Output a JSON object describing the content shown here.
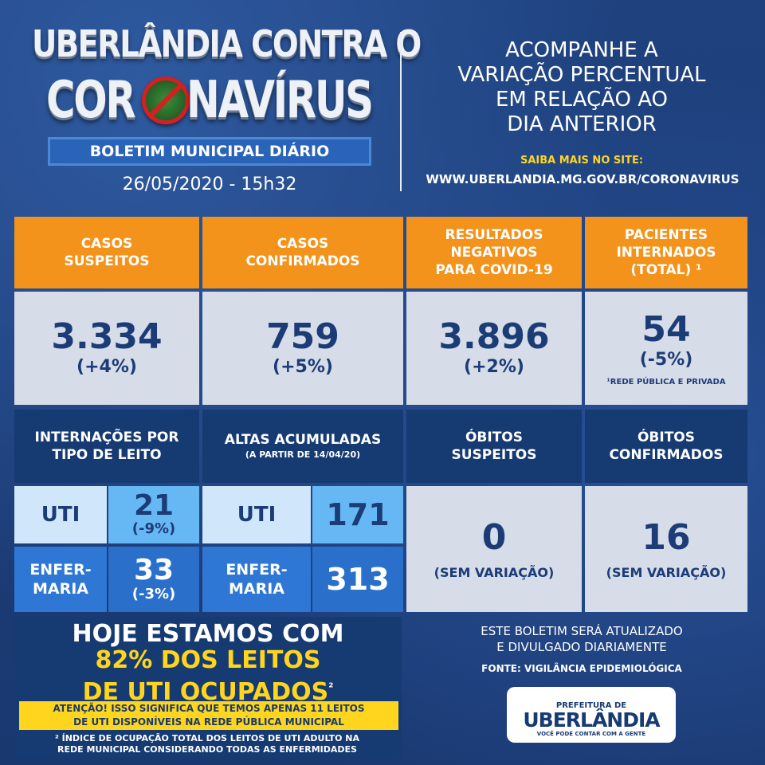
{
  "header": {
    "title_line1": "UBERLÂNDIA CONTRA O",
    "title_line2_a": "COR",
    "title_line2_b": "NAVÍRUS",
    "badge": "BOLETIM MUNICIPAL DIÁRIO",
    "date": "26/05/2020 - 15h32",
    "acompanhe_lines": [
      "ACOMPANHE A",
      "VARIAÇÃO PERCENTUAL",
      "EM RELAÇÃO AO",
      "DIA ANTERIOR"
    ],
    "saiba": "SAIBA MAIS NO SITE:",
    "site": "WWW.UBERLANDIA.MG.GOV.BR/CORONAVIRUS"
  },
  "row1": [
    {
      "label": "CASOS\nSUSPEITOS",
      "value": "3.334",
      "pct": "(+4%)"
    },
    {
      "label": "CASOS\nCONFIRMADOS",
      "value": "759",
      "pct": "(+5%)"
    },
    {
      "label": "RESULTADOS\nNEGATIVOS\nPARA COVID-19",
      "value": "3.896",
      "pct": "(+2%)"
    },
    {
      "label": "PACIENTES\nINTERNADOS\n(TOTAL) ¹",
      "value": "54",
      "pct": "(-5%)",
      "note": "¹REDE PÚBLICA E PRIVADA"
    }
  ],
  "internacoes": {
    "title": "INTERNAÇÕES POR\nTIPO DE LEITO",
    "uti_label": "UTI",
    "uti_value": "21",
    "uti_pct": "(-9%)",
    "enf_label": "ENFER-\nMARIA",
    "enf_value": "33",
    "enf_pct": "(-3%)"
  },
  "altas": {
    "title": "ALTAS ACUMULADAS",
    "subtitle": "(A PARTIR DE 14/04/20)",
    "uti_label": "UTI",
    "uti_value": "171",
    "enf_label": "ENFER-\nMARIA",
    "enf_value": "313"
  },
  "obitos_suspeitos": {
    "title": "ÓBITOS\nSUSPEITOS",
    "value": "0",
    "note": "(SEM VARIAÇÃO)"
  },
  "obitos_confirmados": {
    "title": "ÓBITOS\nCONFIRMADOS",
    "value": "16",
    "note": "(SEM VARIAÇÃO)"
  },
  "hoje": {
    "line1": "HOJE ESTAMOS COM",
    "line2": "82% DOS LEITOS",
    "line3": "DE UTI OCUPADOS",
    "sup": "²",
    "atencao": "ATENÇÃO! ISSO SIGNIFICA QUE TEMOS APENAS 11 LEITOS\nDE UTI DISPONÍVEIS NA REDE PÚBLICA MUNICIPAL",
    "nota": "² ÍNDICE DE OCUPAÇÃO TOTAL DOS LEITOS DE UTI ADULTO NA\nREDE MUNICIPAL CONSIDERANDO TODAS AS ENFERMIDADES"
  },
  "footer": {
    "este": "ESTE BOLETIM SERÁ ATUALIZADO\nE DIVULGADO DIARIAMENTE",
    "fonte": "FONTE: VIGILÂNCIA EPIDEMIOLÓGICA",
    "logo_top": "PREFEITURA DE",
    "logo_main": "UBERLÂNDIA",
    "logo_slogan": "VOCÊ PODE CONTAR COM A GENTE"
  },
  "colors": {
    "navy": "#163a72",
    "orange": "#f3931b",
    "yellow": "#ffd51e",
    "grey": "#d6dde8",
    "light_blue": "#66b8f4"
  }
}
